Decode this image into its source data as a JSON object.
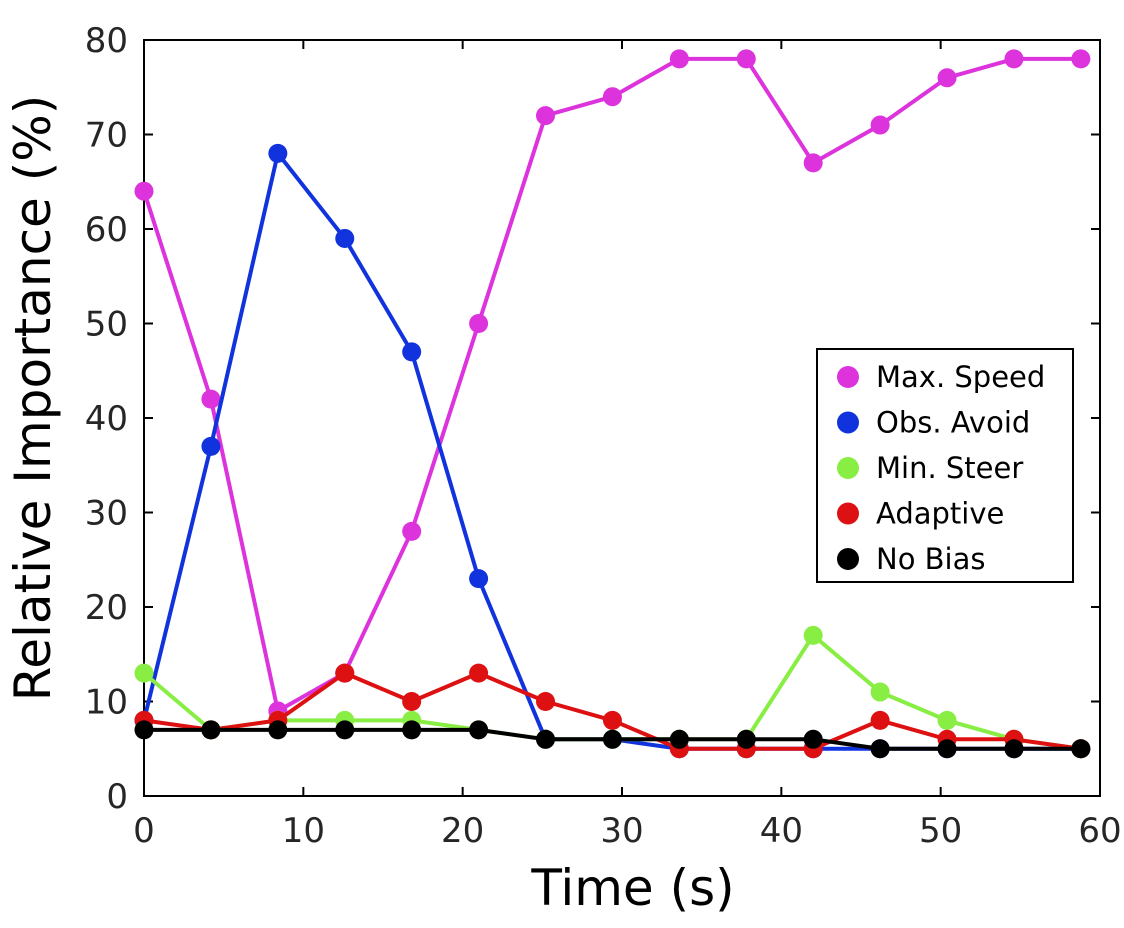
{
  "chart_data": {
    "type": "line",
    "xlabel": "Time (s)",
    "ylabel": "Relative Importance (%)",
    "xlim": [
      0,
      60
    ],
    "ylim": [
      0,
      80
    ],
    "xticks": [
      "0",
      "10",
      "20",
      "30",
      "40",
      "50",
      "60"
    ],
    "yticks": [
      "0",
      "10",
      "20",
      "30",
      "40",
      "50",
      "60",
      "70",
      "80"
    ],
    "grid": false,
    "legend_position": "right",
    "x": [
      0,
      4.2,
      8.4,
      12.6,
      16.8,
      21,
      25.2,
      29.4,
      33.6,
      37.8,
      42,
      46.2,
      50.4,
      54.6,
      58.8
    ],
    "series": [
      {
        "name": "Max. Speed",
        "color": "#dd33dd",
        "values": [
          64,
          42,
          9,
          13,
          28,
          50,
          72,
          74,
          78,
          78,
          67,
          71,
          76,
          78,
          78
        ]
      },
      {
        "name": "Obs. Avoid",
        "color": "#1133dd",
        "values": [
          8,
          37,
          68,
          59,
          47,
          23,
          6,
          6,
          5,
          5,
          5,
          5,
          5,
          5,
          5
        ]
      },
      {
        "name": "Min. Steer",
        "color": "#88ee44",
        "values": [
          13,
          7,
          8,
          8,
          8,
          7,
          6,
          6,
          6,
          6,
          17,
          11,
          8,
          6,
          5
        ]
      },
      {
        "name": "Adaptive",
        "color": "#dd1111",
        "values": [
          8,
          7,
          8,
          13,
          10,
          13,
          10,
          8,
          5,
          5,
          5,
          8,
          6,
          6,
          5
        ]
      },
      {
        "name": "No Bias",
        "color": "#000000",
        "values": [
          7,
          7,
          7,
          7,
          7,
          7,
          6,
          6,
          6,
          6,
          6,
          5,
          5,
          5,
          5
        ]
      }
    ]
  }
}
